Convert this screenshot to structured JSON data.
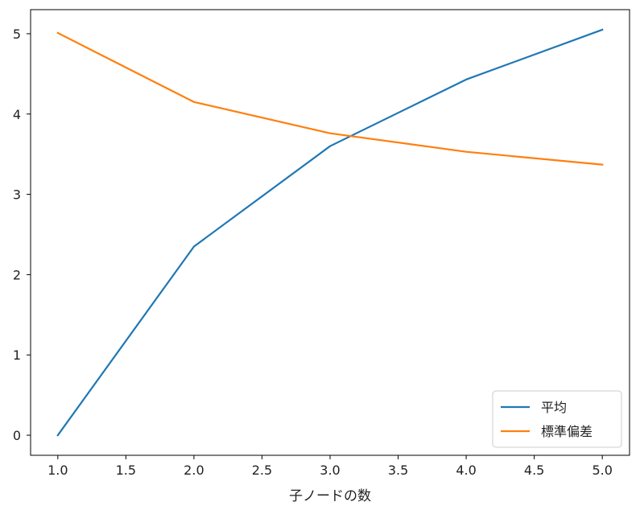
{
  "chart_data": {
    "type": "line",
    "title": "",
    "xlabel": "子ノードの数",
    "ylabel": "",
    "x": [
      1.0,
      2.0,
      3.0,
      4.0,
      5.0
    ],
    "series": [
      {
        "name": "平均",
        "values": [
          0.0,
          2.35,
          3.6,
          4.43,
          5.05
        ],
        "color": "#1f77b4"
      },
      {
        "name": "標準偏差",
        "values": [
          5.01,
          4.15,
          3.76,
          3.53,
          3.37
        ],
        "color": "#ff7f0e"
      }
    ],
    "xlim": [
      0.8,
      5.2
    ],
    "ylim": [
      -0.25,
      5.3
    ],
    "xticks": [
      1.0,
      1.5,
      2.0,
      2.5,
      3.0,
      3.5,
      4.0,
      4.5,
      5.0
    ],
    "xtick_labels": [
      "1.0",
      "1.5",
      "2.0",
      "2.5",
      "3.0",
      "3.5",
      "4.0",
      "4.5",
      "5.0"
    ],
    "yticks": [
      0,
      1,
      2,
      3,
      4,
      5
    ],
    "ytick_labels": [
      "0",
      "1",
      "2",
      "3",
      "4",
      "5"
    ],
    "grid": false,
    "legend_position": "lower-right"
  }
}
